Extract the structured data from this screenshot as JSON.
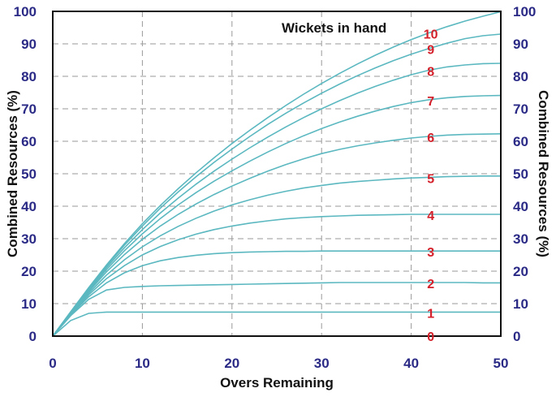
{
  "chart_data": {
    "type": "line",
    "title": "",
    "xlabel": "Overs Remaining",
    "ylabel": "Combined Resources (%)",
    "ylabel_right": "Combined Resources (%)",
    "xlim": [
      0,
      50
    ],
    "ylim": [
      0,
      100
    ],
    "x_ticks": [
      "0",
      "10",
      "20",
      "30",
      "40",
      "50"
    ],
    "y_ticks": [
      "0",
      "10",
      "20",
      "30",
      "40",
      "50",
      "60",
      "70",
      "80",
      "90",
      "100"
    ],
    "grid": true,
    "legend_title": "Wickets in hand",
    "colors": {
      "curve": "#5bb8c0",
      "wicket_label": "#d4202a",
      "tick": "#2a2a86",
      "grid": "#9a9a9a"
    },
    "x": [
      0,
      2,
      4,
      6,
      8,
      10,
      12,
      14,
      16,
      18,
      20,
      22,
      24,
      26,
      28,
      30,
      32,
      34,
      36,
      38,
      40,
      42,
      44,
      46,
      48,
      50
    ],
    "series": [
      {
        "name": "10",
        "values": [
          0,
          7.5,
          14.9,
          21.9,
          28.5,
          34.6,
          40.2,
          45.4,
          50.3,
          54.9,
          59.3,
          63.4,
          67.3,
          71.0,
          74.5,
          77.8,
          80.9,
          83.8,
          86.5,
          89.0,
          91.3,
          93.4,
          95.3,
          97.0,
          98.5,
          99.9
        ]
      },
      {
        "name": "9",
        "values": [
          0,
          7.4,
          14.7,
          21.6,
          28.0,
          33.9,
          39.4,
          44.4,
          49.1,
          53.5,
          57.6,
          61.5,
          65.2,
          68.6,
          71.8,
          74.8,
          77.6,
          80.2,
          82.6,
          84.8,
          86.8,
          88.6,
          90.2,
          91.6,
          92.5,
          93.0
        ]
      },
      {
        "name": "8",
        "values": [
          0,
          7.3,
          14.4,
          21.1,
          27.2,
          32.8,
          37.9,
          42.5,
          46.8,
          50.8,
          54.5,
          58.0,
          61.3,
          64.4,
          67.3,
          70.0,
          72.5,
          74.8,
          76.9,
          78.8,
          80.5,
          81.9,
          82.9,
          83.5,
          83.9,
          84.0
        ]
      },
      {
        "name": "7",
        "values": [
          0,
          7.2,
          14.1,
          20.5,
          26.3,
          31.5,
          36.2,
          40.4,
          44.2,
          47.7,
          50.9,
          53.9,
          56.7,
          59.3,
          61.7,
          63.9,
          65.9,
          67.7,
          69.3,
          70.7,
          71.9,
          72.8,
          73.4,
          73.8,
          74.0,
          74.1
        ]
      },
      {
        "name": "6",
        "values": [
          0,
          7.1,
          13.7,
          19.8,
          25.1,
          29.8,
          33.9,
          37.5,
          40.7,
          43.6,
          46.2,
          48.6,
          50.8,
          52.8,
          54.6,
          56.2,
          57.5,
          58.6,
          59.5,
          60.3,
          61.0,
          61.5,
          61.9,
          62.1,
          62.2,
          62.3
        ]
      },
      {
        "name": "5",
        "values": [
          0,
          6.9,
          13.2,
          18.8,
          23.5,
          27.5,
          30.9,
          33.8,
          36.3,
          38.5,
          40.4,
          42.0,
          43.4,
          44.6,
          45.6,
          46.4,
          47.1,
          47.6,
          48.0,
          48.4,
          48.7,
          48.9,
          49.1,
          49.2,
          49.3,
          49.3
        ]
      },
      {
        "name": "4",
        "values": [
          0,
          6.8,
          12.7,
          17.7,
          21.7,
          25.0,
          27.6,
          29.7,
          31.4,
          32.8,
          33.9,
          34.8,
          35.5,
          36.1,
          36.5,
          36.8,
          37.0,
          37.2,
          37.3,
          37.4,
          37.5,
          37.5,
          37.5,
          37.5,
          37.5,
          37.5
        ]
      },
      {
        "name": "3",
        "values": [
          0,
          6.6,
          12.1,
          16.4,
          19.5,
          21.7,
          23.2,
          24.2,
          24.9,
          25.4,
          25.7,
          25.9,
          26.0,
          26.1,
          26.1,
          26.2,
          26.2,
          26.2,
          26.2,
          26.2,
          26.2,
          26.2,
          26.2,
          26.2,
          26.2,
          26.2
        ]
      },
      {
        "name": "2",
        "values": [
          0,
          6.3,
          11.3,
          14.2,
          15.0,
          15.3,
          15.5,
          15.6,
          15.7,
          15.8,
          15.9,
          16.0,
          16.1,
          16.2,
          16.3,
          16.4,
          16.5,
          16.5,
          16.5,
          16.5,
          16.5,
          16.5,
          16.5,
          16.5,
          16.4,
          16.4
        ]
      },
      {
        "name": "1",
        "values": [
          0,
          4.8,
          7.0,
          7.4,
          7.4,
          7.4,
          7.4,
          7.4,
          7.4,
          7.4,
          7.4,
          7.4,
          7.4,
          7.4,
          7.4,
          7.4,
          7.4,
          7.4,
          7.4,
          7.4,
          7.4,
          7.4,
          7.4,
          7.4,
          7.4,
          7.4
        ]
      },
      {
        "name": "0",
        "values": [
          0,
          0,
          0,
          0,
          0,
          0,
          0,
          0,
          0,
          0,
          0,
          0,
          0,
          0,
          0,
          0,
          0,
          0,
          0,
          0,
          0,
          0,
          0,
          0,
          0,
          0
        ]
      }
    ]
  }
}
